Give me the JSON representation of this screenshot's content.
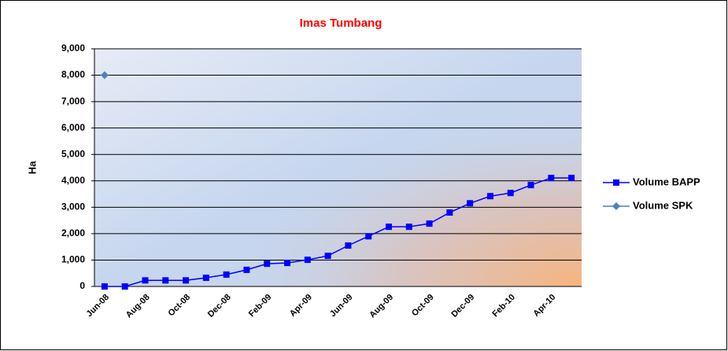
{
  "chart_data": {
    "type": "line",
    "title": "Imas Tumbang",
    "y_label": "Ha",
    "categories": [
      "Jun-08",
      null,
      "Aug-08",
      null,
      "Oct-08",
      null,
      "Dec-08",
      null,
      "Feb-09",
      null,
      "Apr-09",
      null,
      "Jun-09",
      null,
      "Aug-09",
      null,
      "Oct-09",
      null,
      "Dec-09",
      null,
      "Feb-10",
      null,
      "Apr-10",
      null
    ],
    "series": [
      {
        "name": "Volume BAPP",
        "color": "#0000ff",
        "marker": "square",
        "values": [
          0,
          0,
          230,
          230,
          230,
          330,
          450,
          630,
          860,
          890,
          1010,
          1160,
          1550,
          1900,
          2260,
          2260,
          2380,
          2800,
          3150,
          3420,
          3540,
          3840,
          4110,
          4110
        ]
      },
      {
        "name": "Volume SPK",
        "color": "#4f81bd",
        "marker": "diamond",
        "values": [
          8000,
          null,
          null,
          null,
          null,
          null,
          null,
          null,
          null,
          null,
          null,
          null,
          null,
          null,
          null,
          null,
          null,
          null,
          null,
          null,
          null,
          null,
          null,
          null
        ]
      }
    ],
    "ylim": [
      0,
      9000
    ],
    "yticks": [
      0,
      {
        "value": 1000,
        "label": "1,000"
      },
      {
        "value": 2000,
        "label": "2,000"
      },
      {
        "value": 3000,
        "label": "3,000"
      },
      {
        "value": 4000,
        "label": "4,000"
      },
      {
        "value": 5000,
        "label": "5,000"
      },
      {
        "value": 6000,
        "label": "6,000"
      },
      {
        "value": 7000,
        "label": "7,000"
      },
      {
        "value": 8000,
        "label": "8,000"
      },
      {
        "value": 9000,
        "label": "9,000"
      }
    ],
    "grid": true,
    "legend": "right"
  }
}
